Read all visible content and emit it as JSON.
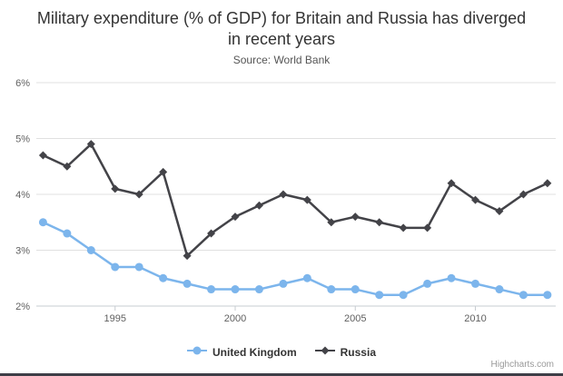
{
  "chart": {
    "title": "Military expenditure (% of GDP) for Britain and Russia has diverged in recent years",
    "subtitle": "Source: World Bank",
    "credits": "Highcharts.com"
  },
  "chart_data": {
    "type": "line",
    "x": [
      1992,
      1993,
      1994,
      1995,
      1996,
      1997,
      1998,
      1999,
      2000,
      2001,
      2002,
      2003,
      2004,
      2005,
      2006,
      2007,
      2008,
      2009,
      2010,
      2011,
      2012,
      2013
    ],
    "series": [
      {
        "name": "United Kingdom",
        "color": "#7cb5ec",
        "marker": "circle",
        "values": [
          3.5,
          3.3,
          3.0,
          2.7,
          2.7,
          2.5,
          2.4,
          2.3,
          2.3,
          2.3,
          2.4,
          2.5,
          2.3,
          2.3,
          2.2,
          2.2,
          2.4,
          2.5,
          2.4,
          2.3,
          2.2,
          2.2
        ]
      },
      {
        "name": "Russia",
        "color": "#434348",
        "marker": "diamond",
        "values": [
          4.7,
          4.5,
          4.9,
          4.1,
          4.0,
          4.4,
          2.9,
          3.3,
          3.6,
          3.8,
          4.0,
          3.9,
          3.5,
          3.6,
          3.5,
          3.4,
          3.4,
          4.2,
          3.9,
          3.7,
          4.0,
          4.2
        ]
      }
    ],
    "title": "Military expenditure (% of GDP) for Britain and Russia has diverged in recent years",
    "subtitle": "Source: World Bank",
    "xlabel": "",
    "ylabel": "",
    "ylim": [
      2,
      6
    ],
    "ytick_values": [
      2,
      3,
      4,
      5,
      6
    ],
    "ytick_labels": [
      "2%",
      "3%",
      "4%",
      "5%",
      "6%"
    ],
    "xtick_values": [
      1995,
      2000,
      2005,
      2010
    ],
    "xtick_labels": [
      "1995",
      "2000",
      "2005",
      "2010"
    ],
    "grid": "horizontal",
    "legend_position": "bottom"
  },
  "colors": {
    "grid": "#e0e0e0",
    "axis_line": "#c7ccd1",
    "tick": "#c7ccd1",
    "axis_label": "#606060",
    "title": "#333333",
    "subtitle": "#555555",
    "legend_text": "#333333",
    "credits": "#999999"
  }
}
